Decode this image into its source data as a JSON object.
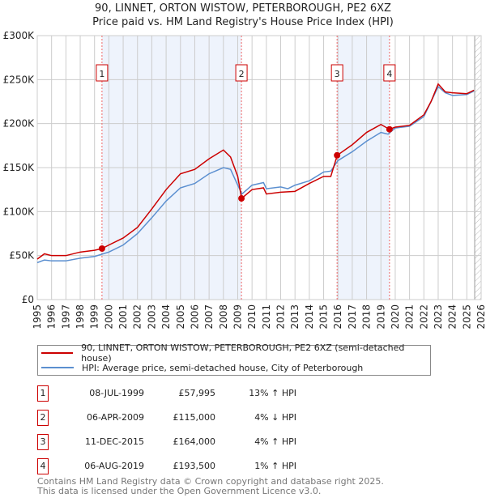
{
  "chart_data": {
    "type": "line",
    "title": "90, LINNET, ORTON WISTOW, PETERBOROUGH, PE2 6XZ",
    "subtitle": "Price paid vs. HM Land Registry's House Price Index (HPI)",
    "xlim": [
      1995,
      2026
    ],
    "ylim": [
      0,
      300000
    ],
    "x_ticks": [
      1995,
      1996,
      1997,
      1998,
      1999,
      2000,
      2001,
      2002,
      2003,
      2004,
      2005,
      2006,
      2007,
      2008,
      2009,
      2010,
      2011,
      2012,
      2013,
      2014,
      2015,
      2016,
      2017,
      2018,
      2019,
      2020,
      2021,
      2022,
      2023,
      2024,
      2025,
      2026
    ],
    "y_ticks": [
      {
        "v": 0,
        "label": "£0"
      },
      {
        "v": 50000,
        "label": "£50K"
      },
      {
        "v": 100000,
        "label": "£100K"
      },
      {
        "v": 150000,
        "label": "£150K"
      },
      {
        "v": 200000,
        "label": "£200K"
      },
      {
        "v": 250000,
        "label": "£250K"
      },
      {
        "v": 300000,
        "label": "£300K"
      }
    ],
    "grid": true,
    "series": [
      {
        "name": "90, LINNET, ORTON WISTOW, PETERBOROUGH, PE2 6XZ (semi-detached house)",
        "color": "#cc0000",
        "x": [
          1995,
          1995.5,
          1996,
          1997,
          1998,
          1999,
          1999.52,
          2000,
          2001,
          2002,
          2003,
          2004,
          2005,
          2006,
          2007,
          2008,
          2008.5,
          2009,
          2009.27,
          2010,
          2010.8,
          2011,
          2012,
          2013,
          2014,
          2015,
          2015.5,
          2015.95,
          2017,
          2018,
          2019,
          2019.6,
          2020,
          2021,
          2022,
          2022.5,
          2023,
          2023.5,
          2024,
          2025,
          2025.5
        ],
        "y": [
          46000,
          52000,
          50000,
          50000,
          54000,
          56000,
          57995,
          62000,
          70000,
          82000,
          103000,
          125000,
          143000,
          148000,
          160000,
          170000,
          162000,
          140000,
          115000,
          125000,
          127000,
          120000,
          122000,
          123000,
          132000,
          140000,
          140000,
          164000,
          176000,
          190000,
          199000,
          193500,
          196000,
          198000,
          210000,
          225000,
          245000,
          236000,
          235000,
          234000,
          238000
        ]
      },
      {
        "name": "HPI: Average price, semi-detached house, City of Peterborough",
        "color": "#5b8fd0",
        "x": [
          1995,
          1995.5,
          1996,
          1997,
          1998,
          1999,
          2000,
          2001,
          2002,
          2003,
          2004,
          2005,
          2006,
          2007,
          2008,
          2008.5,
          2009,
          2009.3,
          2010,
          2010.8,
          2011,
          2012,
          2012.5,
          2013,
          2014,
          2015,
          2015.5,
          2016,
          2017,
          2018,
          2019,
          2019.5,
          2020,
          2021,
          2022,
          2022.5,
          2023,
          2023.5,
          2024,
          2025,
          2025.5
        ],
        "y": [
          42000,
          45000,
          44000,
          44000,
          47000,
          49000,
          54000,
          62000,
          75000,
          93000,
          112000,
          127000,
          132000,
          143000,
          150000,
          148000,
          130000,
          120000,
          130000,
          133000,
          126000,
          128000,
          126000,
          130000,
          135000,
          145000,
          146000,
          158000,
          168000,
          180000,
          190000,
          188000,
          195000,
          197000,
          208000,
          225000,
          242000,
          235000,
          232000,
          233000,
          237000
        ]
      }
    ],
    "sales": [
      {
        "id": "1",
        "x": 1999.52,
        "date": "08-JUL-1999",
        "price": 57995,
        "price_label": "£57,995",
        "hpi": "13% ↑ HPI"
      },
      {
        "id": "2",
        "x": 2009.26,
        "date": "06-APR-2009",
        "price": 115000,
        "price_label": "£115,000",
        "hpi": "4% ↓ HPI"
      },
      {
        "id": "3",
        "x": 2015.94,
        "date": "11-DEC-2015",
        "price": 164000,
        "price_label": "£164,000",
        "hpi": "4% ↑ HPI"
      },
      {
        "id": "4",
        "x": 2019.6,
        "date": "06-AUG-2019",
        "price": 193500,
        "price_label": "£193,500",
        "hpi": "1% ↑ HPI"
      }
    ],
    "shaded_ranges": [
      [
        1999.52,
        2009.26
      ],
      [
        2015.94,
        2019.6
      ]
    ],
    "forecast_start": 2025.55
  },
  "footer": {
    "line1": "Contains HM Land Registry data © Crown copyright and database right 2025.",
    "line2": "This data is licensed under the Open Government Licence v3.0."
  }
}
